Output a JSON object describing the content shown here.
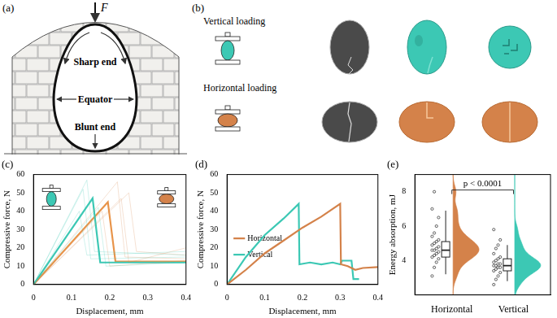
{
  "diagram": {
    "a": {
      "label": "(a)",
      "force": "F",
      "labels": [
        "Sharp end",
        "Equator",
        "Blunt end"
      ]
    },
    "b": {
      "label": "(b)",
      "rows": [
        "Vertical loading",
        "Horizontal loading"
      ]
    }
  },
  "chart_data": [
    {
      "type": "line",
      "title": "(c)",
      "xlabel": "Displacement, mm",
      "ylabel": "Compressive force, N",
      "xlim": [
        0,
        0.4
      ],
      "xticks": [
        0,
        0.1,
        0.2,
        0.3,
        0.4
      ],
      "ylim": [
        0,
        60
      ],
      "yticks": [
        0,
        10,
        20,
        30,
        40,
        50,
        60
      ],
      "grid": false,
      "series": [
        {
          "color": "#3cc8b4",
          "line_style": "thin",
          "x": [
            0,
            0.13,
            0.15,
            0.4
          ],
          "values": [
            0,
            52,
            14,
            15
          ]
        },
        {
          "color": "#3cc8b4",
          "line_style": "thin",
          "x": [
            0,
            0.14,
            0.16,
            0.4
          ],
          "values": [
            0,
            57,
            18,
            16
          ]
        },
        {
          "color": "#3cc8b4",
          "line_style": "thin",
          "x": [
            0,
            0.17,
            0.19,
            0.4
          ],
          "values": [
            0,
            42,
            10,
            12
          ]
        },
        {
          "color": "#3cc8b4",
          "line_style": "thin",
          "x": [
            0,
            0.12,
            0.14,
            0.4
          ],
          "values": [
            0,
            40,
            16,
            18
          ]
        },
        {
          "color": "#d4824a",
          "line_style": "thin",
          "x": [
            0,
            0.22,
            0.24,
            0.4
          ],
          "values": [
            0,
            56,
            15,
            14
          ]
        },
        {
          "color": "#d4824a",
          "line_style": "thin",
          "x": [
            0,
            0.18,
            0.2,
            0.4
          ],
          "values": [
            0,
            40,
            10,
            13
          ]
        },
        {
          "color": "#d4824a",
          "line_style": "thin",
          "x": [
            0,
            0.25,
            0.27,
            0.4
          ],
          "values": [
            0,
            50,
            18,
            16
          ]
        },
        {
          "color": "#d4824a",
          "line_style": "thin",
          "x": [
            0,
            0.23,
            0.25,
            0.4
          ],
          "values": [
            0,
            47,
            12,
            20
          ]
        },
        {
          "color": "#3cc8b4",
          "line_style": "solid",
          "x": [
            0,
            0.155,
            0.175,
            0.4
          ],
          "values": [
            0,
            47,
            12,
            12
          ]
        },
        {
          "color": "#e8944a",
          "line_style": "solid",
          "x": [
            0,
            0.195,
            0.215,
            0.4
          ],
          "values": [
            0,
            45,
            12.5,
            12.5
          ]
        }
      ]
    },
    {
      "type": "line",
      "title": "(d)",
      "xlabel": "Displacement, mm",
      "ylabel": "Compressive force, N",
      "xlim": [
        0,
        0.4
      ],
      "xticks": [
        0,
        0.1,
        0.2,
        0.3,
        0.4
      ],
      "ylim": [
        0,
        60
      ],
      "yticks": [
        0,
        10,
        20,
        30,
        40,
        50,
        60
      ],
      "grid": false,
      "legend": "top-right",
      "series": [
        {
          "name": "Horizontal",
          "color": "#d4824a",
          "line_style": "solid",
          "x": [
            0,
            0.05,
            0.1,
            0.15,
            0.2,
            0.25,
            0.3,
            0.302,
            0.32,
            0.34,
            0.36,
            0.4
          ],
          "values": [
            0,
            8,
            17,
            24,
            31,
            37,
            44,
            11,
            10,
            8,
            9,
            9.5
          ]
        },
        {
          "name": "Vertical",
          "color": "#3cc8b4",
          "line_style": "solid",
          "x": [
            0,
            0.05,
            0.1,
            0.15,
            0.19,
            0.192,
            0.22,
            0.25,
            0.28,
            0.3,
            0.305,
            0.33,
            0.335,
            0.35
          ],
          "values": [
            0,
            15,
            27,
            36,
            44,
            11,
            12,
            11,
            12,
            11,
            13,
            13,
            3,
            3
          ]
        }
      ]
    },
    {
      "type": "violin",
      "title": "(e)",
      "ylabel": "Energy absorption, mJ",
      "categories": [
        "Horizontal",
        "Vertical"
      ],
      "colors": [
        "#d4824a",
        "#3cc8b4"
      ],
      "ylim": [
        2,
        9
      ],
      "yticks": [
        4,
        6,
        8
      ],
      "grid": false,
      "annotations": [
        "p < 0.0001"
      ],
      "values": [
        [
          3.1,
          3.6,
          3.9,
          4.1,
          4.2,
          4.3,
          4.4,
          4.5,
          4.6,
          4.6,
          4.7,
          4.8,
          4.9,
          5.0,
          5.1,
          5.2,
          5.4,
          5.6,
          6.0,
          6.5,
          7.0,
          8.0
        ],
        [
          2.6,
          2.9,
          3.1,
          3.3,
          3.4,
          3.5,
          3.6,
          3.6,
          3.7,
          3.7,
          3.8,
          3.8,
          3.9,
          4.0,
          4.1,
          4.2,
          4.4,
          4.7,
          4.9,
          5.2,
          5.8
        ]
      ],
      "box": [
        {
          "whisker_low": 3.2,
          "q1": 4.2,
          "median": 4.6,
          "q3": 5.1,
          "whisker_high": 6.9
        },
        {
          "whisker_low": 2.8,
          "q1": 3.4,
          "median": 3.7,
          "q3": 4.1,
          "whisker_high": 4.9
        }
      ]
    }
  ]
}
